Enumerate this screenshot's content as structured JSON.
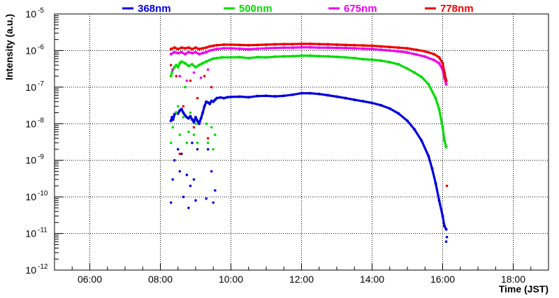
{
  "chart_data": {
    "type": "scatter",
    "title": "",
    "xlabel": "Time (JST)",
    "ylabel": "Intensity (a.u.)",
    "x_unit": "hours (JST)",
    "xlim": [
      5.0,
      19.0
    ],
    "ylim_log10": [
      -12,
      -5
    ],
    "y_scale": "log",
    "grid": true,
    "legend_position": "top",
    "x_ticks": [
      {
        "value": 6,
        "label": "06:00"
      },
      {
        "value": 8,
        "label": "08:00"
      },
      {
        "value": 10,
        "label": "10:00"
      },
      {
        "value": 12,
        "label": "12:00"
      },
      {
        "value": 14,
        "label": "14:00"
      },
      {
        "value": 16,
        "label": "16:00"
      },
      {
        "value": 18,
        "label": "18:00"
      }
    ],
    "y_ticks": [
      {
        "exp": -12,
        "base": "10",
        "sup": "-12"
      },
      {
        "exp": -11,
        "base": "10",
        "sup": "-11"
      },
      {
        "exp": -10,
        "base": "10",
        "sup": "-10"
      },
      {
        "exp": -9,
        "base": "10",
        "sup": "-9"
      },
      {
        "exp": -8,
        "base": "10",
        "sup": "-8"
      },
      {
        "exp": -7,
        "base": "10",
        "sup": "-7"
      },
      {
        "exp": -6,
        "base": "10",
        "sup": "-6"
      },
      {
        "exp": -5,
        "base": "10",
        "sup": "-5"
      }
    ],
    "series": [
      {
        "name": "368nm",
        "color": "#0000dd",
        "x": [
          8.3,
          8.33,
          8.36,
          8.4,
          8.45,
          8.5,
          8.55,
          8.6,
          8.65,
          8.7,
          8.75,
          8.8,
          8.85,
          8.9,
          8.95,
          9.0,
          9.05,
          9.1,
          9.15,
          9.2,
          9.25,
          9.3,
          9.35,
          9.4,
          9.45,
          9.5,
          9.55,
          9.6,
          9.7,
          9.8,
          9.9,
          10.0,
          10.25,
          10.5,
          10.75,
          11.0,
          11.25,
          11.5,
          11.75,
          12.0,
          12.25,
          12.5,
          12.75,
          13.0,
          13.25,
          13.5,
          13.75,
          14.0,
          14.25,
          14.5,
          14.75,
          15.0,
          15.2,
          15.4,
          15.6,
          15.7,
          15.8,
          15.9,
          16.0,
          16.05,
          16.1
        ],
        "y": [
          1.2e-08,
          1.5e-08,
          1.3e-08,
          1.8e-08,
          2e-08,
          1.9e-08,
          2.3e-08,
          2.5e-08,
          2e-08,
          1.7e-08,
          1.5e-08,
          1.4e-08,
          1.6e-08,
          1.3e-08,
          1.1e-08,
          1.5e-08,
          1.2e-08,
          1e-08,
          1.4e-08,
          2e-08,
          3e-08,
          4e-08,
          3.8e-08,
          3.5e-08,
          4.2e-08,
          4e-08,
          4.5e-08,
          5e-08,
          5.2e-08,
          5e-08,
          5.3e-08,
          5.4e-08,
          5.5e-08,
          5.3e-08,
          5.7e-08,
          5.8e-08,
          5.6e-08,
          5.8e-08,
          6.2e-08,
          6.8e-08,
          6.8e-08,
          6.5e-08,
          6e-08,
          5.5e-08,
          5e-08,
          4.5e-08,
          4.1e-08,
          3.7e-08,
          3.2e-08,
          2.6e-08,
          1.9e-08,
          1.2e-08,
          7e-09,
          3.5e-09,
          1.3e-09,
          6e-10,
          2.4e-10,
          8e-11,
          3e-11,
          1.6e-11,
          1.3e-11
        ],
        "outliers_x": [
          8.3,
          8.35,
          8.4,
          8.5,
          8.55,
          8.65,
          8.75,
          8.8,
          8.85,
          8.95,
          9.0,
          9.05,
          9.3,
          9.35,
          9.5,
          9.55,
          8.6,
          8.9,
          9.45,
          16.1,
          16.12
        ],
        "outliers_y": [
          7e-11,
          3e-10,
          1e-09,
          2e-09,
          5e-10,
          1e-10,
          4e-10,
          5e-11,
          2e-10,
          3e-10,
          8e-11,
          2e-09,
          9e-11,
          2e-09,
          7e-11,
          1.5e-10,
          1.5e-09,
          3e-09,
          5e-10,
          6e-12,
          8e-12
        ]
      },
      {
        "name": "500nm",
        "color": "#00dd00",
        "x": [
          8.3,
          8.35,
          8.4,
          8.45,
          8.5,
          8.55,
          8.6,
          8.7,
          8.8,
          8.9,
          9.0,
          9.1,
          9.2,
          9.3,
          9.4,
          9.5,
          9.6,
          9.75,
          10.0,
          10.25,
          10.5,
          10.75,
          11.0,
          11.25,
          11.5,
          11.75,
          12.0,
          12.25,
          12.5,
          12.75,
          13.0,
          13.25,
          13.5,
          13.75,
          14.0,
          14.25,
          14.5,
          14.75,
          15.0,
          15.2,
          15.4,
          15.6,
          15.8,
          15.9,
          16.0,
          16.05,
          16.1
        ],
        "y": [
          2e-07,
          3e-07,
          3.5e-07,
          4e-07,
          3.5e-07,
          4.5e-07,
          5e-07,
          4.5e-07,
          3.8e-07,
          4.2e-07,
          3.5e-07,
          4e-07,
          4.5e-07,
          5e-07,
          5.5e-07,
          6e-07,
          6.2e-07,
          6.5e-07,
          6.5e-07,
          6.6e-07,
          6.2e-07,
          6.6e-07,
          6.5e-07,
          6.8e-07,
          6.9e-07,
          7e-07,
          7.2e-07,
          7.2e-07,
          7e-07,
          6.9e-07,
          6.7e-07,
          6.5e-07,
          6.2e-07,
          5.8e-07,
          5.6e-07,
          5.3e-07,
          4.8e-07,
          4.2e-07,
          3.2e-07,
          2.5e-07,
          1.9e-07,
          1.2e-07,
          5e-08,
          2.5e-08,
          8e-09,
          3.5e-09,
          2.3e-09
        ],
        "outliers_x": [
          8.3,
          8.35,
          8.45,
          8.55,
          8.65,
          8.75,
          8.8,
          8.85,
          8.95,
          9.0,
          9.05,
          9.3,
          9.35,
          9.45,
          9.5,
          9.55,
          8.5,
          8.7
        ],
        "outliers_y": [
          3e-09,
          8e-09,
          2e-08,
          5e-09,
          1.5e-08,
          3e-09,
          6e-09,
          2e-08,
          5e-09,
          1e-08,
          3e-09,
          1e-08,
          3e-09,
          8e-09,
          2e-09,
          5e-09,
          3e-08,
          1e-07
        ]
      },
      {
        "name": "675nm",
        "color": "#ee00ee",
        "x": [
          8.3,
          8.4,
          8.5,
          8.6,
          8.7,
          8.8,
          8.9,
          9.0,
          9.1,
          9.2,
          9.3,
          9.4,
          9.5,
          9.6,
          9.8,
          10.0,
          10.25,
          10.5,
          10.75,
          11.0,
          11.25,
          11.5,
          11.75,
          12.0,
          12.25,
          12.5,
          12.75,
          13.0,
          13.25,
          13.5,
          13.75,
          14.0,
          14.25,
          14.5,
          14.75,
          15.0,
          15.25,
          15.5,
          15.75,
          15.9,
          16.0,
          16.05,
          16.1
        ],
        "y": [
          8e-07,
          9e-07,
          8.5e-07,
          9e-07,
          8e-07,
          9e-07,
          8.5e-07,
          9e-07,
          8e-07,
          8.5e-07,
          9e-07,
          1e-06,
          1.05e-06,
          1.1e-06,
          1.15e-06,
          1.15e-06,
          1.12e-06,
          1.08e-06,
          1.12e-06,
          1.15e-06,
          1.18e-06,
          1.2e-06,
          1.2e-06,
          1.22e-06,
          1.22e-06,
          1.2e-06,
          1.2e-06,
          1.18e-06,
          1.17e-06,
          1.15e-06,
          1.12e-06,
          1.1e-06,
          1.05e-06,
          1e-06,
          9.5e-07,
          8.8e-07,
          7.8e-07,
          6.8e-07,
          5.5e-07,
          4.5e-07,
          3e-07,
          1.8e-07,
          1.2e-07
        ],
        "outliers_x": [
          8.35,
          8.55,
          8.75,
          8.95,
          9.15,
          9.35
        ],
        "outliers_y": [
          3e-07,
          2e-07,
          1.5e-07,
          2.5e-07,
          1.8e-07,
          3e-07
        ]
      },
      {
        "name": "778nm",
        "color": "#ee0000",
        "x": [
          8.3,
          8.4,
          8.5,
          8.6,
          8.7,
          8.8,
          8.9,
          9.0,
          9.1,
          9.2,
          9.3,
          9.4,
          9.5,
          9.6,
          9.8,
          10.0,
          10.25,
          10.5,
          10.75,
          11.0,
          11.25,
          11.5,
          11.75,
          12.0,
          12.25,
          12.5,
          12.75,
          13.0,
          13.25,
          13.5,
          13.75,
          14.0,
          14.25,
          14.5,
          14.75,
          15.0,
          15.25,
          15.5,
          15.75,
          15.9,
          16.0,
          16.05,
          16.1
        ],
        "y": [
          1.1e-06,
          1.2e-06,
          1.1e-06,
          1.2e-06,
          1.15e-06,
          1.2e-06,
          1.1e-06,
          1.2e-06,
          1.1e-06,
          1.15e-06,
          1.2e-06,
          1.3e-06,
          1.35e-06,
          1.4e-06,
          1.45e-06,
          1.45e-06,
          1.42e-06,
          1.4e-06,
          1.42e-06,
          1.45e-06,
          1.48e-06,
          1.5e-06,
          1.5e-06,
          1.52e-06,
          1.52e-06,
          1.5e-06,
          1.48e-06,
          1.45e-06,
          1.42e-06,
          1.4e-06,
          1.38e-06,
          1.35e-06,
          1.3e-06,
          1.25e-06,
          1.2e-06,
          1.15e-06,
          1.05e-06,
          9.5e-07,
          8e-07,
          6.5e-07,
          4.5e-07,
          2.5e-07,
          1.5e-07
        ],
        "outliers_x": [
          8.3,
          8.45,
          8.65,
          8.85,
          9.05,
          9.25,
          9.45,
          8.55,
          8.95,
          9.35,
          16.12
        ],
        "outliers_y": [
          4e-07,
          2e-07,
          3e-08,
          1.5e-07,
          5e-08,
          2e-07,
          1e-07,
          1.5e-09,
          8e-09,
          4e-09,
          2e-10
        ]
      }
    ]
  }
}
